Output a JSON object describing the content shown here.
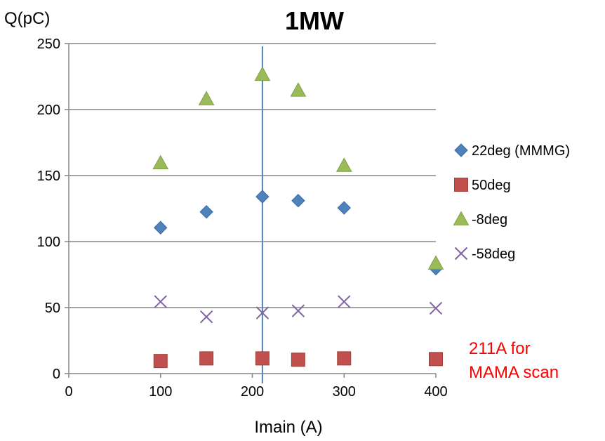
{
  "chart_data": {
    "type": "scatter",
    "title": "1MW",
    "xlabel": "Imain (A)",
    "ylabel": "Q(pC)",
    "xlim": [
      0,
      400
    ],
    "ylim": [
      0,
      250
    ],
    "xticks": [
      "0",
      "100",
      "200",
      "300",
      "400"
    ],
    "yticks": [
      "0",
      "50",
      "100",
      "150",
      "200",
      "250"
    ],
    "grid": "horizontal",
    "legend_position": "right",
    "vertical_line_x": 211,
    "series": [
      {
        "name": "22deg (MMMG)",
        "marker": "diamond",
        "color": "#4f81bd",
        "points": [
          [
            100,
            110.5
          ],
          [
            150,
            122.5
          ],
          [
            211,
            134
          ],
          [
            250,
            131
          ],
          [
            300,
            125.5
          ],
          [
            400,
            79.5
          ]
        ]
      },
      {
        "name": "50deg",
        "marker": "square",
        "color": "#c0504d",
        "points": [
          [
            100,
            9.5
          ],
          [
            150,
            11.5
          ],
          [
            211,
            11.5
          ],
          [
            250,
            10.5
          ],
          [
            300,
            11.5
          ],
          [
            400,
            11
          ]
        ]
      },
      {
        "name": "-8deg",
        "marker": "triangle",
        "color": "#9bbb59",
        "points": [
          [
            100,
            159.5
          ],
          [
            150,
            208
          ],
          [
            211,
            226.5
          ],
          [
            250,
            214.5
          ],
          [
            300,
            157.5
          ],
          [
            400,
            83.5
          ]
        ]
      },
      {
        "name": "-58deg",
        "marker": "x",
        "color": "#8064a2",
        "points": [
          [
            100,
            54.5
          ],
          [
            150,
            43
          ],
          [
            211,
            46
          ],
          [
            250,
            47.5
          ],
          [
            300,
            54.5
          ],
          [
            400,
            49.5
          ]
        ]
      }
    ],
    "annotation": {
      "lines": [
        "211A for",
        "MAMA scan"
      ],
      "color": "#ff0000"
    }
  }
}
